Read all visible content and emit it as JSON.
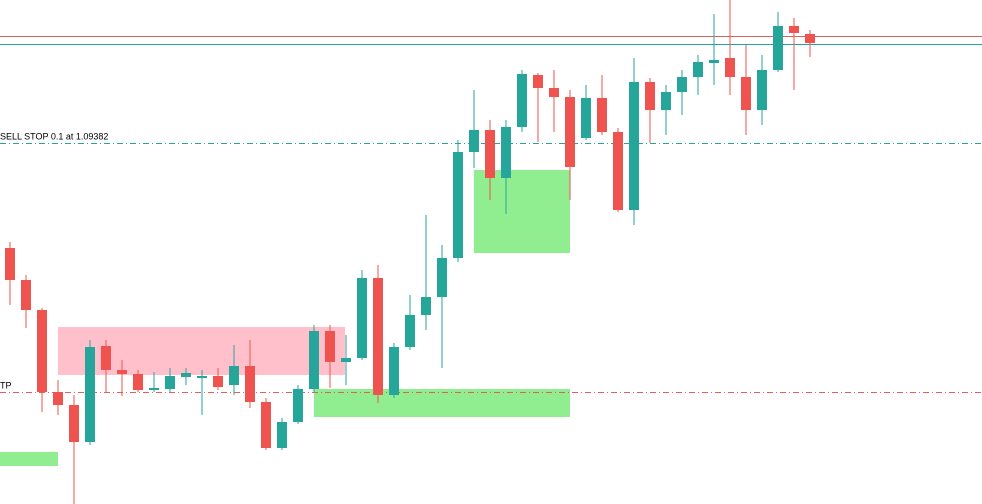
{
  "chart_data": {
    "type": "candlestick",
    "ylim": [
      1.0866,
      1.09668
    ],
    "up_color": "#26a69a",
    "down_color": "#ef5350",
    "open": [
      1.09172,
      1.09108,
      1.09048,
      1.08884,
      1.08858,
      1.08784,
      1.08976,
      1.08928,
      1.0892,
      1.08888,
      1.0889,
      1.08914,
      1.08912,
      1.08916,
      1.08898,
      1.08936,
      1.08864,
      1.08772,
      1.08824,
      1.0889,
      1.09006,
      1.08944,
      1.08952,
      1.09112,
      1.08878,
      1.08974,
      1.09038,
      1.09074,
      1.09152,
      1.09364,
      1.09408,
      1.09312,
      1.09414,
      1.09518,
      1.09492,
      1.09474,
      1.09392,
      1.09472,
      1.09404,
      1.09248,
      1.09504,
      1.09448,
      1.09484,
      1.09514,
      1.09542,
      1.09552,
      1.09514,
      1.09448,
      1.09528,
      1.09616,
      1.096
    ],
    "high": [
      1.09184,
      1.09118,
      1.09052,
      1.08908,
      1.08878,
      1.08988,
      1.08988,
      1.08948,
      1.08928,
      1.08924,
      1.08932,
      1.08932,
      1.08928,
      1.08932,
      1.08978,
      1.08988,
      1.08872,
      1.08832,
      1.08898,
      1.09018,
      1.09018,
      1.08998,
      1.09128,
      1.09138,
      1.08982,
      1.09078,
      1.09238,
      1.09178,
      1.09388,
      1.09488,
      1.09428,
      1.09428,
      1.09528,
      1.09522,
      1.09528,
      1.09488,
      1.09498,
      1.09518,
      1.09412,
      1.09552,
      1.09512,
      1.09498,
      1.09528,
      1.09558,
      1.0964,
      1.09668,
      1.09578,
      1.09558,
      1.09644,
      1.09632,
      1.09608
    ],
    "low": [
      1.09058,
      1.09012,
      1.08844,
      1.08838,
      1.0866,
      1.08778,
      1.08884,
      1.08876,
      1.08884,
      1.08884,
      1.08884,
      1.08898,
      1.08838,
      1.08888,
      1.08878,
      1.08852,
      1.08768,
      1.08768,
      1.0882,
      1.08884,
      1.08892,
      1.08898,
      1.08948,
      1.08862,
      1.08872,
      1.08968,
      1.09008,
      1.08932,
      1.09144,
      1.09332,
      1.09268,
      1.0924,
      1.09404,
      1.09384,
      1.09404,
      1.09268,
      1.09388,
      1.09398,
      1.09244,
      1.09218,
      1.09382,
      1.09398,
      1.09438,
      1.09478,
      1.09498,
      1.09478,
      1.09398,
      1.09418,
      1.09524,
      1.09488,
      1.09554
    ],
    "close": [
      1.09108,
      1.09048,
      1.08884,
      1.08858,
      1.08784,
      1.08974,
      1.08928,
      1.0892,
      1.08888,
      1.08892,
      1.08916,
      1.08922,
      1.08916,
      1.08894,
      1.08936,
      1.08864,
      1.08772,
      1.08824,
      1.0889,
      1.09006,
      1.08944,
      1.08952,
      1.09112,
      1.08878,
      1.08974,
      1.09038,
      1.09074,
      1.09152,
      1.09364,
      1.09408,
      1.09312,
      1.09414,
      1.0952,
      1.09492,
      1.09474,
      1.09334,
      1.09472,
      1.09404,
      1.09248,
      1.09504,
      1.09448,
      1.09484,
      1.09514,
      1.09544,
      1.09548,
      1.09514,
      1.09448,
      1.09528,
      1.09616,
      1.09602,
      1.09582
    ],
    "levels": [
      {
        "value": 1.09596,
        "color": "#e0605a",
        "style": "solid"
      },
      {
        "value": 1.0958,
        "color": "#26a69a",
        "style": "solid"
      },
      {
        "value": 1.09382,
        "label": "SELL STOP 0.1 at 1.09382",
        "color": "#26a69a",
        "style": "dashdot"
      },
      {
        "value": 1.08884,
        "label": "TP",
        "color": "#e0605a",
        "style": "dashdot"
      }
    ],
    "zones": [
      {
        "top": 1.09014,
        "bottom": 1.08918,
        "color": "#ffc0cb"
      },
      {
        "top": 1.09328,
        "bottom": 1.09162,
        "color": "#90ee90"
      },
      {
        "top": 1.0889,
        "bottom": 1.08834,
        "color": "#90ee90"
      },
      {
        "top": 1.08764,
        "bottom": 1.08736,
        "color": "#90ee90"
      }
    ]
  }
}
